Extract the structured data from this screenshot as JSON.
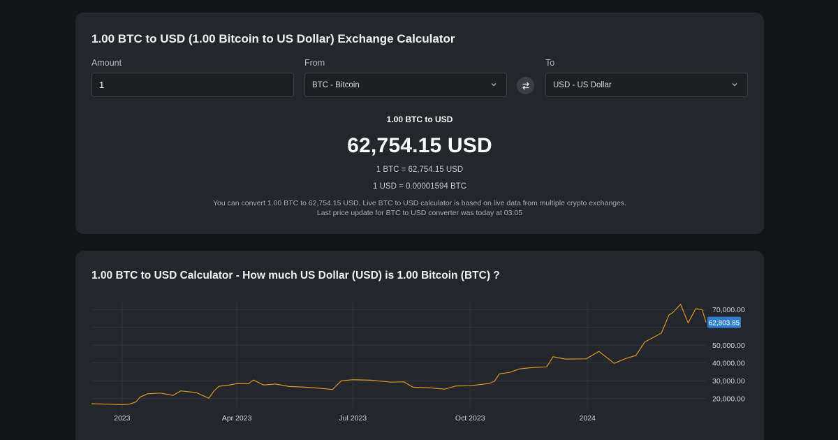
{
  "converter": {
    "title": "1.00 BTC to USD (1.00 Bitcoin to US Dollar) Exchange Calculator",
    "amount_label": "Amount",
    "amount_value": "1",
    "from_label": "From",
    "from_value": "BTC - Bitcoin",
    "to_label": "To",
    "to_value": "USD - US Dollar",
    "result_subtitle": "1.00 BTC to USD",
    "result_value": "62,754.15 USD",
    "rate_btc_usd": "1 BTC = 62,754.15 USD",
    "rate_usd_btc": "1 USD = 0.00001594 BTC",
    "note_line1": "You can convert 1.00 BTC to 62,754.15 USD. Live BTC to USD calculator is based on live data from multiple crypto exchanges.",
    "note_line2": "Last price update for BTC to USD converter was today at 03:05"
  },
  "chart_section": {
    "title": "1.00 BTC to USD Calculator - How much US Dollar (USD) is 1.00 Bitcoin (BTC) ?"
  },
  "colors": {
    "line": "#d99a1e",
    "price_tag": "#2f7fd0",
    "grid": "#33363c",
    "axis_text": "#d4d6da"
  },
  "icons": {
    "swap": "swap-arrows-icon",
    "dropdown": "chevron-down-icon"
  },
  "chart_data": {
    "type": "line",
    "title": "",
    "xlabel": "",
    "ylabel": "",
    "x_tick_labels": [
      "2023",
      "Apr 2023",
      "Jul 2023",
      "Oct 2023",
      "2024"
    ],
    "y_tick_labels": [
      "20,000.00",
      "30,000.00",
      "40,000.00",
      "50,000.00",
      "70,000.00"
    ],
    "current_price_label": "62,803.85",
    "current_price": 62803.85,
    "ylim": [
      14000,
      74000
    ],
    "xlim": [
      "2022-12-08",
      "2024-04-03"
    ],
    "grid": true,
    "series": [
      {
        "points": [
          [
            "2022-12-08",
            17100
          ],
          [
            "2022-12-20",
            16900
          ],
          [
            "2023-01-01",
            16600
          ],
          [
            "2023-01-07",
            16900
          ],
          [
            "2023-01-12",
            18200
          ],
          [
            "2023-01-15",
            20800
          ],
          [
            "2023-01-21",
            22700
          ],
          [
            "2023-01-31",
            23100
          ],
          [
            "2023-02-10",
            21800
          ],
          [
            "2023-02-16",
            24300
          ],
          [
            "2023-02-28",
            23400
          ],
          [
            "2023-03-10",
            20200
          ],
          [
            "2023-03-14",
            24200
          ],
          [
            "2023-03-18",
            26900
          ],
          [
            "2023-03-25",
            27500
          ],
          [
            "2023-04-01",
            28400
          ],
          [
            "2023-04-10",
            28300
          ],
          [
            "2023-04-14",
            30400
          ],
          [
            "2023-04-22",
            27600
          ],
          [
            "2023-05-01",
            28200
          ],
          [
            "2023-05-12",
            26800
          ],
          [
            "2023-05-25",
            26400
          ],
          [
            "2023-06-05",
            25800
          ],
          [
            "2023-06-15",
            25100
          ],
          [
            "2023-06-22",
            30000
          ],
          [
            "2023-07-01",
            30600
          ],
          [
            "2023-07-15",
            30300
          ],
          [
            "2023-07-31",
            29200
          ],
          [
            "2023-08-10",
            29400
          ],
          [
            "2023-08-17",
            26400
          ],
          [
            "2023-08-31",
            26000
          ],
          [
            "2023-09-11",
            25300
          ],
          [
            "2023-09-20",
            27100
          ],
          [
            "2023-10-01",
            27200
          ],
          [
            "2023-10-16",
            28500
          ],
          [
            "2023-10-20",
            29700
          ],
          [
            "2023-10-24",
            33900
          ],
          [
            "2023-11-01",
            34700
          ],
          [
            "2023-11-09",
            36700
          ],
          [
            "2023-11-20",
            37500
          ],
          [
            "2023-11-30",
            37800
          ],
          [
            "2023-12-05",
            43500
          ],
          [
            "2023-12-15",
            42200
          ],
          [
            "2023-12-31",
            42300
          ],
          [
            "2024-01-10",
            46500
          ],
          [
            "2024-01-22",
            39800
          ],
          [
            "2024-01-31",
            42500
          ],
          [
            "2024-02-08",
            44200
          ],
          [
            "2024-02-15",
            51800
          ],
          [
            "2024-02-28",
            56800
          ],
          [
            "2024-03-05",
            67000
          ],
          [
            "2024-03-08",
            68300
          ],
          [
            "2024-03-14",
            73000
          ],
          [
            "2024-03-20",
            62500
          ],
          [
            "2024-03-26",
            70500
          ],
          [
            "2024-03-31",
            69900
          ],
          [
            "2024-04-03",
            62800
          ]
        ]
      }
    ]
  }
}
